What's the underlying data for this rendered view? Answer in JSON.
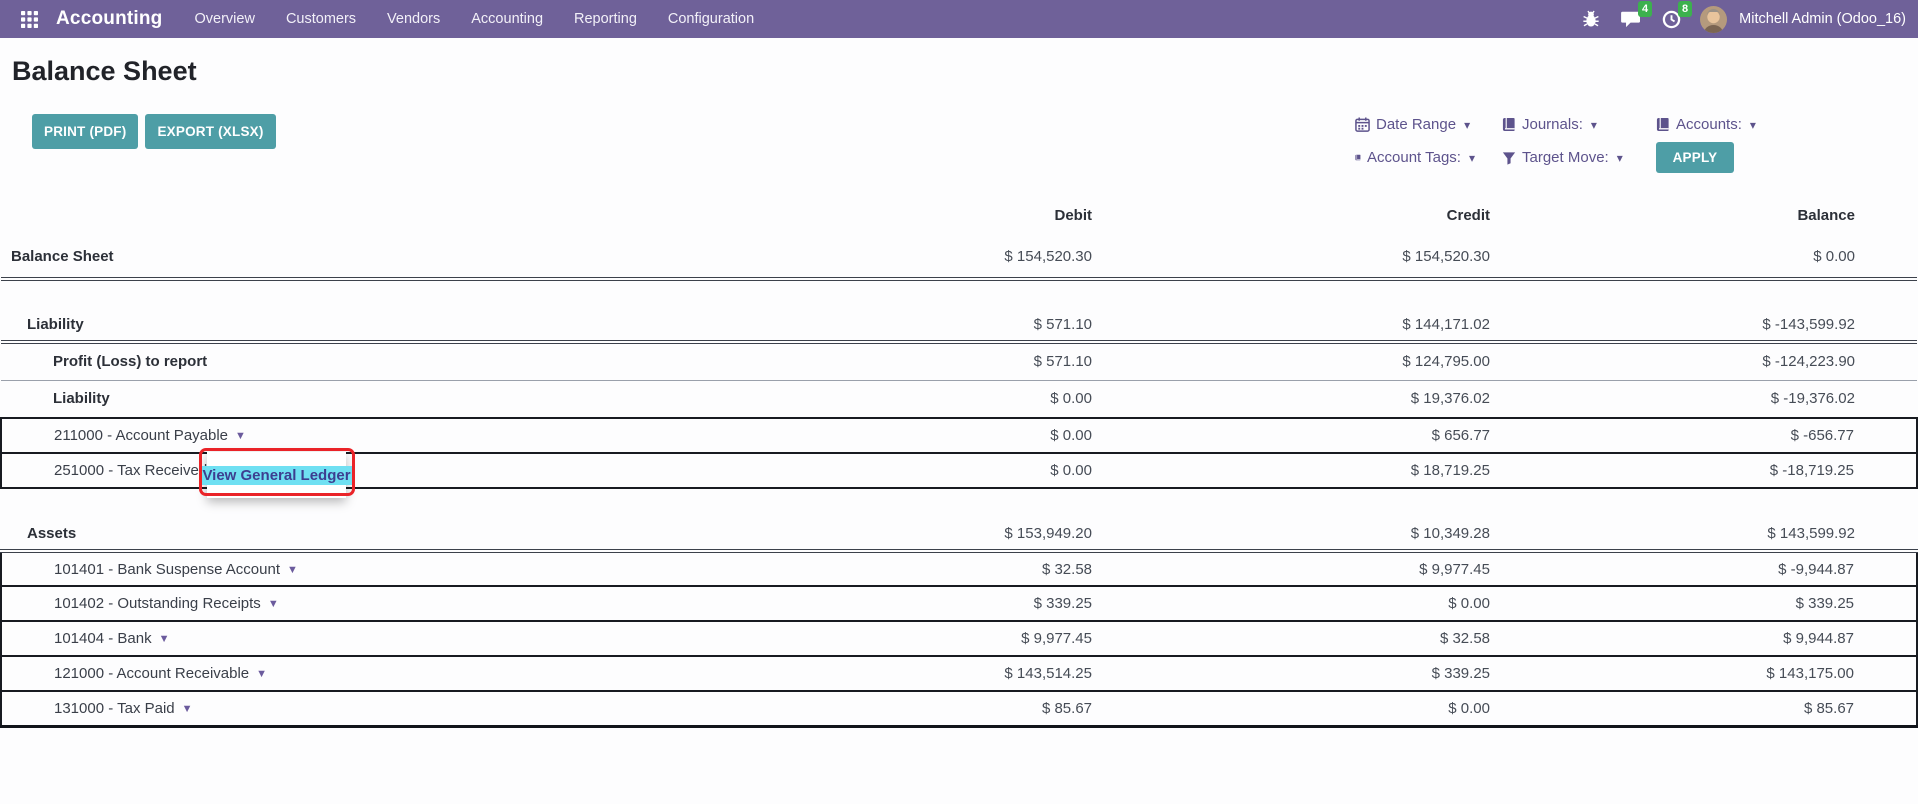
{
  "navbar": {
    "app_name": "Accounting",
    "menu_items": [
      "Overview",
      "Customers",
      "Vendors",
      "Accounting",
      "Reporting",
      "Configuration"
    ],
    "message_badge": "4",
    "activity_badge": "8",
    "user_name": "Mitchell Admin (Odoo_16)"
  },
  "page": {
    "title": "Balance Sheet"
  },
  "toolbar": {
    "print_label": "PRINT (PDF)",
    "export_label": "EXPORT (XLSX)",
    "apply_label": "APPLY"
  },
  "filters": {
    "items": [
      {
        "icon": "calendar-icon",
        "label": "Date Range"
      },
      {
        "icon": "book-icon",
        "label": "Journals:"
      },
      {
        "icon": "book-icon",
        "label": "Accounts:"
      },
      {
        "icon": "book-icon",
        "label": "Account Tags:"
      },
      {
        "icon": "funnel-icon",
        "label": "Target Move:"
      }
    ]
  },
  "table": {
    "columns": [
      "Debit",
      "Credit",
      "Balance"
    ],
    "rows": [
      {
        "label": "Balance Sheet",
        "debit": "$ 154,520.30",
        "credit": "$ 154,520.30",
        "balance": "$ 0.00",
        "style": "total",
        "level": 0
      },
      {
        "spacer": true
      },
      {
        "label": "Liability",
        "debit": "$ 571.10",
        "credit": "$ 144,171.02",
        "balance": "$ -143,599.92",
        "style": "section",
        "level": 1
      },
      {
        "label": "Profit (Loss) to report",
        "debit": "$ 571.10",
        "credit": "$ 124,795.00",
        "balance": "$ -124,223.90",
        "style": "sub",
        "level": 2
      },
      {
        "label": "Liability",
        "debit": "$ 0.00",
        "credit": "$ 19,376.02",
        "balance": "$ -19,376.02",
        "style": "subsolid",
        "level": 2
      },
      {
        "label": "211000 - Account Payable",
        "debit": "$ 0.00",
        "credit": "$ 656.77",
        "balance": "$ -656.77",
        "style": "account",
        "level": 2
      },
      {
        "label": "251000 - Tax Received",
        "debit": "$ 0.00",
        "credit": "$ 18,719.25",
        "balance": "$ -18,719.25",
        "style": "account",
        "level": 2
      },
      {
        "spacer": true
      },
      {
        "label": "Assets",
        "debit": "$ 153,949.20",
        "credit": "$ 10,349.28",
        "balance": "$ 143,599.92",
        "style": "section",
        "level": 1
      },
      {
        "label": "101401 - Bank Suspense Account",
        "debit": "$ 32.58",
        "credit": "$ 9,977.45",
        "balance": "$ -9,944.87",
        "style": "account",
        "level": 2
      },
      {
        "label": "101402 - Outstanding Receipts",
        "debit": "$ 339.25",
        "credit": "$ 0.00",
        "balance": "$ 339.25",
        "style": "account",
        "level": 2
      },
      {
        "label": "101404 - Bank",
        "debit": "$ 9,977.45",
        "credit": "$ 32.58",
        "balance": "$ 9,944.87",
        "style": "account",
        "level": 2
      },
      {
        "label": "121000 - Account Receivable",
        "debit": "$ 143,514.25",
        "credit": "$ 339.25",
        "balance": "$ 143,175.00",
        "style": "account",
        "level": 2
      },
      {
        "label": "131000 - Tax Paid",
        "debit": "$ 85.67",
        "credit": "$ 0.00",
        "balance": "$ 85.67",
        "style": "account last",
        "level": 2
      }
    ]
  },
  "popup": {
    "label": "View General Ledger"
  },
  "colors": {
    "navbar": "#6f6199",
    "button_teal": "#4e9ea6",
    "badge_green": "#3cb14e",
    "filter_purple": "#5d538c",
    "highlight_cyan": "#6fe0f2",
    "annotation_red": "#ea2328"
  }
}
